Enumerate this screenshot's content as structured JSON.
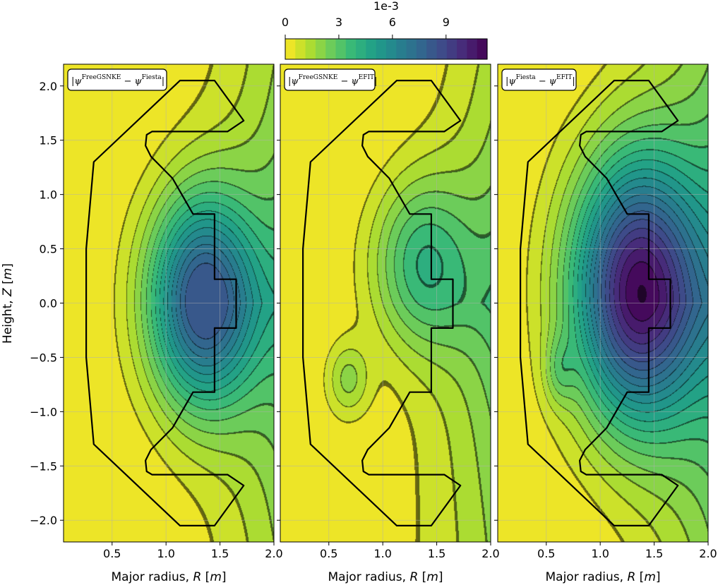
{
  "chart_data": {
    "type": "contour",
    "colorbar": {
      "label": "1e-3",
      "ticks": [
        0,
        3,
        6,
        9
      ],
      "tick_labels": [
        "0",
        "3",
        "6",
        "9"
      ],
      "range": [
        0,
        11.3
      ],
      "colormap": "viridis_r",
      "levels": 20
    },
    "x_axis": {
      "label": "Major radius, R [m]",
      "label_plain": "Major radius, ",
      "label_var": "R",
      "label_unit": "m",
      "range": [
        0.05,
        2.0
      ],
      "ticks": [
        0.5,
        1.0,
        1.5,
        2.0
      ],
      "tick_labels": [
        "0.5",
        "1.0",
        "1.5",
        "2.0"
      ]
    },
    "y_axis": {
      "label": "Height, Z [m]",
      "label_plain": "Height, ",
      "label_var": "Z",
      "label_unit": "m",
      "range": [
        -2.2,
        2.2
      ],
      "ticks": [
        2.0,
        1.5,
        1.0,
        0.5,
        0.0,
        -0.5,
        -1.0,
        -1.5,
        -2.0
      ],
      "tick_labels": [
        "2.0",
        "1.5",
        "1.0",
        "0.5",
        "0.0",
        "−0.5",
        "−1.0",
        "−1.5",
        "−2.0"
      ]
    },
    "grid": true,
    "panels": [
      {
        "legend": {
          "a": "FreeGSNKE",
          "b": "Fiesta"
        },
        "max_value": 8.2,
        "peaks": [
          {
            "R": 1.33,
            "Z": 0.02,
            "amp": 8.2,
            "sR": 0.35,
            "sZ": 0.68
          }
        ],
        "background": {
          "base": 0.6,
          "gradR": 3.6,
          "gradZ": 0.0
        }
      },
      {
        "legend": {
          "a": "FreeGSNKE",
          "b": "EFIT"
        },
        "max_value": 5.0,
        "peaks": [
          {
            "R": 1.35,
            "Z": 0.38,
            "amp": 3.4,
            "sR": 0.33,
            "sZ": 0.55
          },
          {
            "R": 0.68,
            "Z": -0.7,
            "amp": 1.8,
            "sR": 0.14,
            "sZ": 0.24
          }
        ],
        "background": {
          "base": 0.5,
          "gradR": 3.4,
          "gradZ": 0.3
        }
      },
      {
        "legend": {
          "a": "Fiesta",
          "b": "EFIT"
        },
        "max_value": 11.3,
        "peaks": [
          {
            "R": 1.33,
            "Z": 0.12,
            "amp": 10.3,
            "sR": 0.42,
            "sZ": 0.85
          },
          {
            "R": 0.62,
            "Z": -0.62,
            "amp": 1.5,
            "sR": 0.1,
            "sZ": 0.22
          }
        ],
        "background": {
          "base": 0.5,
          "gradR": 4.5,
          "gradZ": 0.0
        }
      }
    ],
    "vessel_outline": [
      [
        1.13,
        2.05
      ],
      [
        1.45,
        2.05
      ],
      [
        1.72,
        1.68
      ],
      [
        1.57,
        1.58
      ],
      [
        0.87,
        1.58
      ],
      [
        0.82,
        1.55
      ],
      [
        0.81,
        1.45
      ],
      [
        0.86,
        1.35
      ],
      [
        1.06,
        1.15
      ],
      [
        1.25,
        0.82
      ],
      [
        1.45,
        0.82
      ],
      [
        1.45,
        0.22
      ],
      [
        1.65,
        0.22
      ],
      [
        1.65,
        -0.23
      ],
      [
        1.45,
        -0.23
      ],
      [
        1.45,
        -0.82
      ],
      [
        1.25,
        -0.82
      ],
      [
        1.06,
        -1.15
      ],
      [
        0.86,
        -1.35
      ],
      [
        0.81,
        -1.45
      ],
      [
        0.82,
        -1.55
      ],
      [
        0.87,
        -1.58
      ],
      [
        1.57,
        -1.58
      ],
      [
        1.72,
        -1.68
      ],
      [
        1.45,
        -2.05
      ],
      [
        1.13,
        -2.05
      ],
      [
        0.33,
        -1.3
      ],
      [
        0.26,
        -0.5
      ],
      [
        0.26,
        0.5
      ],
      [
        0.33,
        1.3
      ]
    ]
  }
}
